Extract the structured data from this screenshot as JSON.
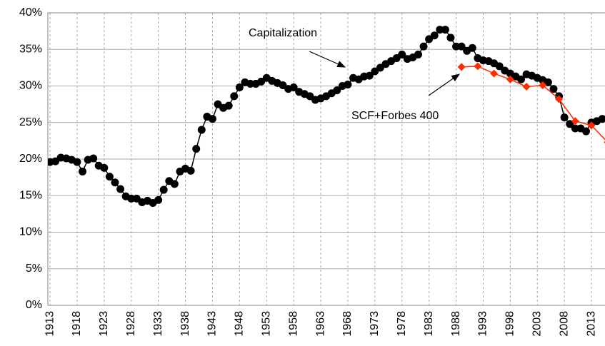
{
  "chart_data": {
    "type": "line",
    "annotations": [
      "Capitalization",
      "SCF+Forbes 400"
    ],
    "xlim": [
      1912.6,
      2015.5
    ],
    "xticks": [
      1913,
      1918,
      1923,
      1928,
      1933,
      1938,
      1943,
      1948,
      1953,
      1958,
      1963,
      1968,
      1973,
      1978,
      1983,
      1988,
      1993,
      1998,
      2003,
      2008,
      2013
    ],
    "ylim": [
      0,
      40
    ],
    "yticks": [
      {
        "value": 0,
        "label": "0%"
      },
      {
        "value": 5,
        "label": "5%"
      },
      {
        "value": 10,
        "label": "10%"
      },
      {
        "value": 15,
        "label": "15%"
      },
      {
        "value": 20,
        "label": "20%"
      },
      {
        "value": 25,
        "label": "25%"
      },
      {
        "value": 30,
        "label": "30%"
      },
      {
        "value": 35,
        "label": "35%"
      },
      {
        "value": 40,
        "label": "40%"
      }
    ],
    "grid": true,
    "series": [
      {
        "name": "Capitalization",
        "color": "#000000",
        "marker": "circle",
        "x": [
          1913,
          1914,
          1915,
          1916,
          1917,
          1918,
          1919,
          1920,
          1921,
          1922,
          1923,
          1924,
          1925,
          1926,
          1927,
          1928,
          1929,
          1930,
          1931,
          1932,
          1933,
          1934,
          1935,
          1936,
          1937,
          1938,
          1939,
          1940,
          1941,
          1942,
          1943,
          1944,
          1945,
          1946,
          1947,
          1948,
          1949,
          1950,
          1951,
          1952,
          1953,
          1954,
          1955,
          1956,
          1957,
          1958,
          1959,
          1960,
          1961,
          1962,
          1963,
          1964,
          1965,
          1966,
          1967,
          1968,
          1969,
          1970,
          1971,
          1972,
          1973,
          1974,
          1975,
          1976,
          1977,
          1978,
          1979,
          1980,
          1981,
          1982,
          1983,
          1984,
          1985,
          1986,
          1987,
          1988,
          1989,
          1990,
          1991,
          1992,
          1993,
          1994,
          1995,
          1996,
          1997,
          1998,
          1999,
          2000,
          2001,
          2002,
          2003,
          2004,
          2005,
          2006,
          2007,
          2008,
          2009,
          2010,
          2011,
          2012,
          2013,
          2014,
          2015
        ],
        "values": [
          19.6,
          19.7,
          20.2,
          20.1,
          19.9,
          19.6,
          18.3,
          19.9,
          20.1,
          19.1,
          18.8,
          17.6,
          16.8,
          15.9,
          14.9,
          14.6,
          14.6,
          14.1,
          14.3,
          14.0,
          14.4,
          15.8,
          17.0,
          16.6,
          18.3,
          18.7,
          18.4,
          21.4,
          24.0,
          25.8,
          25.5,
          27.5,
          27.0,
          27.3,
          28.6,
          29.8,
          30.5,
          30.3,
          30.3,
          30.6,
          31.1,
          30.7,
          30.4,
          30.1,
          29.6,
          29.8,
          29.2,
          28.9,
          28.6,
          28.1,
          28.3,
          28.6,
          29.0,
          29.4,
          30.0,
          30.2,
          31.1,
          30.9,
          31.3,
          31.4,
          32.0,
          32.5,
          33.0,
          33.4,
          33.8,
          34.3,
          33.7,
          33.9,
          34.3,
          35.4,
          36.4,
          36.9,
          37.7,
          37.7,
          36.6,
          35.4,
          35.4,
          34.8,
          35.2,
          33.8,
          33.5,
          33.4,
          33.1,
          32.7,
          32.1,
          31.7,
          31.3,
          30.9,
          31.6,
          31.4,
          31.1,
          30.8,
          30.5,
          29.6,
          28.6,
          25.7,
          24.8,
          24.2,
          24.2,
          23.8,
          25.0,
          25.2,
          25.5
        ]
      },
      {
        "name": "SCF+Forbes 400",
        "color": "#ff2a00",
        "marker": "diamond",
        "x": [
          1989,
          1992,
          1995,
          1998,
          2001,
          2004,
          2007,
          2010,
          2013,
          2016
        ],
        "values": [
          32.6,
          32.7,
          31.7,
          30.9,
          29.9,
          30.1,
          28.2,
          25.2,
          24.6,
          22.3
        ]
      }
    ]
  }
}
